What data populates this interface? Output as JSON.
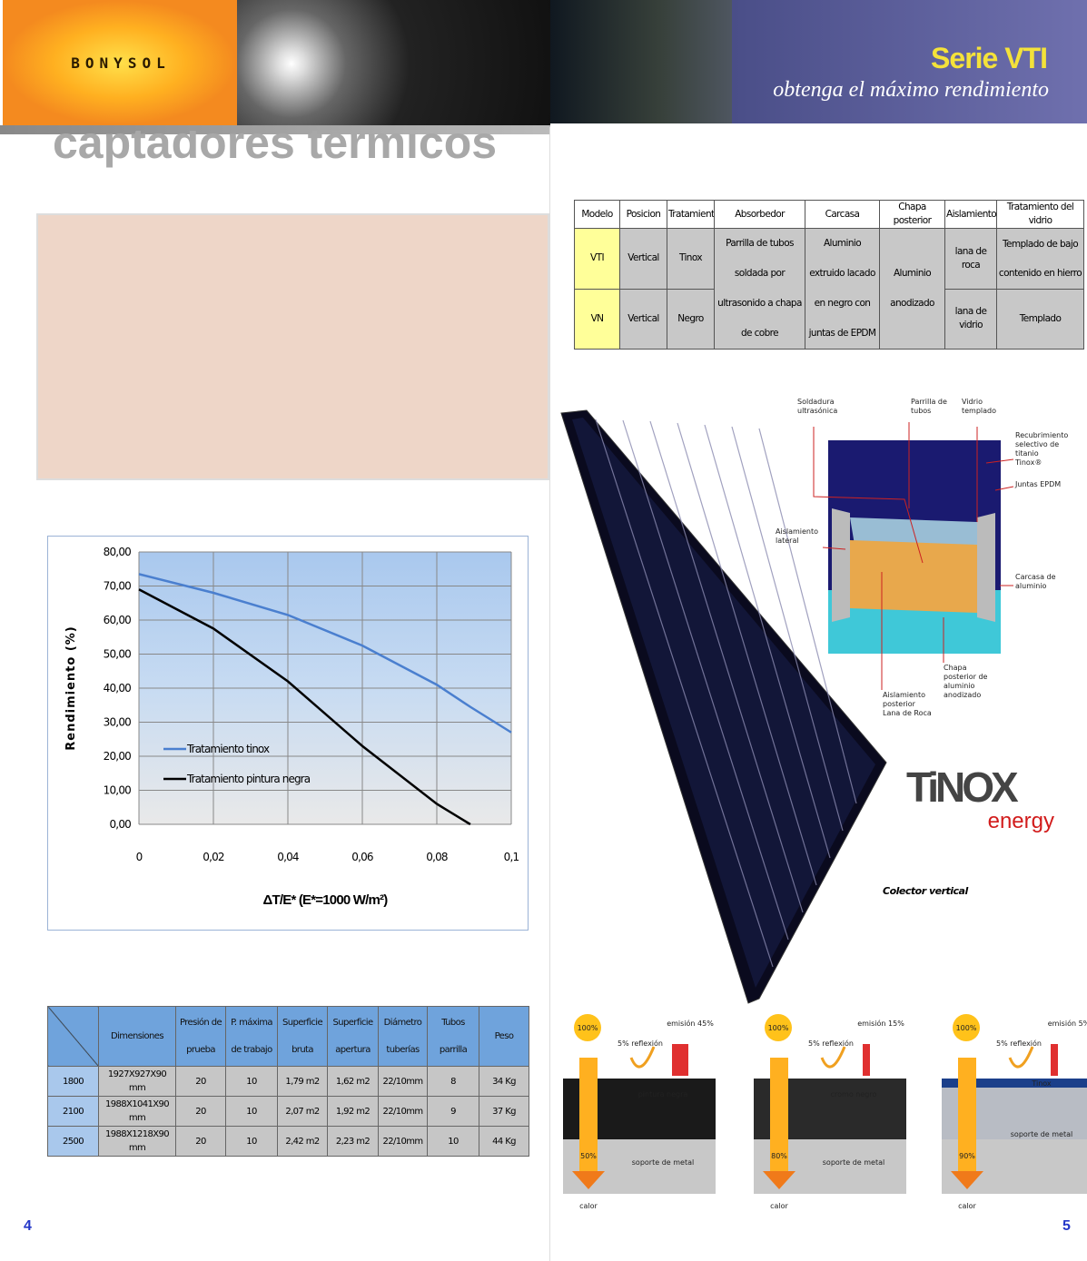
{
  "header": {
    "logo": "BONYSOL",
    "series": "Serie VTI",
    "slogan": "obtenga el máximo rendimiento",
    "section_title": "captadores térmicos"
  },
  "spec_table": {
    "headers": [
      "Modelo",
      "Posicion",
      "Tratamiento",
      "Absorbedor",
      "Carcasa",
      "Chapa posterior",
      "Aislamiento",
      "Tratamiento del vidrio"
    ],
    "rows": [
      [
        "VTI",
        "Vertical",
        "Tinox",
        "Parrilla de tubos soldada por ultrasonido a chapa de cobre",
        "Aluminio extruido lacado en negro con juntas de EPDM",
        "Aluminio anodizado",
        "lana de roca",
        "Templado de bajo contenido en hierro"
      ],
      [
        "VN",
        "Vertical",
        "Negro",
        "lana de vidrio",
        "Templado"
      ]
    ]
  },
  "chart_data": {
    "type": "line",
    "y_label": "Rendimiento (%)",
    "x_label": "ΔT/E*   (E*=1000 W/m²)",
    "x": [
      0,
      0.02,
      0.04,
      0.06,
      0.08,
      0.089,
      0.1
    ],
    "series": [
      {
        "name": "Tratamiento tinox",
        "color": "#4a7fcf",
        "values": [
          73.5,
          68,
          61.5,
          52.5,
          41,
          34.5,
          27
        ]
      },
      {
        "name": "Tratamiento pintura negra",
        "color": "#000000",
        "values": [
          69,
          57.5,
          42,
          23,
          6,
          0,
          null
        ]
      }
    ],
    "xlim": [
      0,
      0.1
    ],
    "ylim": [
      0,
      80
    ],
    "xticks": [
      0,
      {
        "value": 0.02,
        "label": "0,02"
      },
      {
        "value": 0.04,
        "label": "0,04"
      },
      {
        "value": 0.06,
        "label": "0,06"
      },
      {
        "value": 0.08,
        "label": "0,08"
      },
      {
        "value": 0.1,
        "label": "0,1"
      }
    ],
    "yticks": [
      {
        "value": 0,
        "label": "0,00"
      },
      {
        "value": 10,
        "label": "10,00"
      },
      {
        "value": 20,
        "label": "20,00"
      },
      {
        "value": 30,
        "label": "30,00"
      },
      {
        "value": 40,
        "label": "40,00"
      },
      {
        "value": 50,
        "label": "50,00"
      },
      {
        "value": 60,
        "label": "60,00"
      },
      {
        "value": 70,
        "label": "70,00"
      },
      {
        "value": 80,
        "label": "80,00"
      }
    ],
    "grid": true
  },
  "dims_table": {
    "headers": [
      "Dimensiones",
      "Presión de prueba",
      "P. máxima de trabajo",
      "Superficie bruta",
      "Superficie apertura",
      "Diámetro tuberías",
      "Tubos parrilla",
      "Peso"
    ],
    "rows": [
      [
        "1800",
        "1927X927X90 mm",
        "20",
        "10",
        "1,79 m2",
        "1,62 m2",
        "22/10mm",
        "8",
        "34 Kg"
      ],
      [
        "2100",
        "1988X1041X90 mm",
        "20",
        "10",
        "2,07 m2",
        "1,92 m2",
        "22/10mm",
        "9",
        "37 Kg"
      ],
      [
        "2500",
        "1988X1218X90 mm",
        "20",
        "10",
        "2,42 m2",
        "2,23 m2",
        "22/10mm",
        "10",
        "44 Kg"
      ]
    ]
  },
  "diagram": {
    "labels": [
      "Soldadura ultrasónica",
      "Parrilla de tubos",
      "Vidrio templado",
      "Recubrimiento selectivo de titanio Tinox®",
      "Juntas EPDM",
      "Aislamiento lateral",
      "Carcasa de aluminio",
      "Chapa posterior de aluminio anodizado",
      "Aislamiento posterior Lana de Roca"
    ],
    "caption": "Colector vertical",
    "brand": "TiNOX",
    "brand_sub": "energy"
  },
  "emission_panels": [
    {
      "sun": "100%",
      "emission": "emisión 45%",
      "reflection": "5% reflexión",
      "layer": "pintura negra",
      "base": "soporte de metal",
      "absorbed": "50%",
      "heat": "calor"
    },
    {
      "sun": "100%",
      "emission": "emisión 15%",
      "reflection": "5% reflexión",
      "layer": "cromo negro",
      "base": "soporte de metal",
      "absorbed": "80%",
      "heat": "calor"
    },
    {
      "sun": "100%",
      "emission": "emisión 5%",
      "reflection": "5% reflexión",
      "layer": "Tinox",
      "base": "soporte de metal",
      "absorbed": "90%",
      "heat": "calor"
    }
  ],
  "page_numbers": [
    "4",
    "5"
  ]
}
